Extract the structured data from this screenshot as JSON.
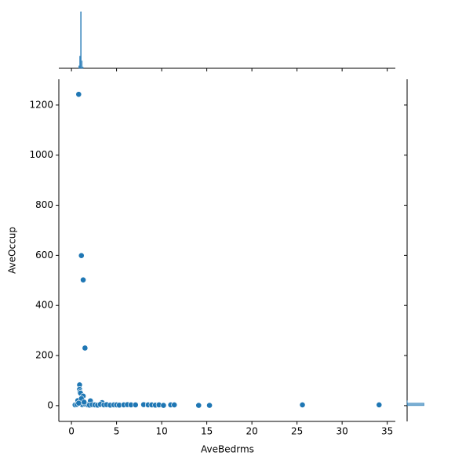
{
  "chart_data": {
    "type": "scatter",
    "xlabel": "AveBedrms",
    "ylabel": "AveOccup",
    "color": "#1f77b4",
    "x": [
      0.8,
      1.1,
      1.3,
      1.5,
      0.9,
      0.9,
      0.95,
      1.0,
      1.3,
      0.7,
      2.1,
      3.4,
      0.4,
      0.6,
      1.0,
      1.2,
      1.5,
      1.8,
      2.0,
      2.3,
      2.6,
      2.9,
      3.2,
      3.6,
      3.9,
      4.3,
      4.7,
      5.0,
      5.3,
      5.8,
      6.2,
      6.6,
      7.1,
      8.0,
      8.5,
      8.9,
      9.3,
      9.7,
      10.2,
      11.0,
      11.4,
      14.1,
      15.3,
      25.6,
      34.1,
      1.1,
      1.4,
      0.8
    ],
    "y": [
      1243,
      599,
      502,
      230,
      83,
      65,
      55,
      50,
      38,
      20,
      19,
      12,
      3,
      5,
      8,
      4,
      6,
      3,
      2,
      4,
      3,
      2,
      5,
      3,
      4,
      2,
      3,
      3,
      2,
      3,
      4,
      3,
      3,
      4,
      3,
      3,
      2,
      3,
      1,
      3,
      3,
      1,
      1,
      3,
      3,
      28,
      14,
      10
    ],
    "xlim": [
      -1.4,
      35.9
    ],
    "xticks": [
      0,
      5,
      10,
      15,
      20,
      25,
      30,
      35
    ],
    "ylim": [
      -63,
      1303
    ],
    "yticks": [
      0,
      200,
      400,
      600,
      800,
      1000,
      1200
    ],
    "x_hist": {
      "bins": [
        0.8,
        0.9,
        1.0,
        1.1,
        1.2,
        1.3
      ],
      "counts": [
        300,
        1500,
        7000,
        900,
        150
      ],
      "countlim": [
        0,
        7000
      ]
    },
    "y_hist": {
      "bins": [
        0,
        10,
        20
      ],
      "counts": [
        18000,
        200
      ],
      "countlim": [
        0,
        60000
      ]
    }
  }
}
